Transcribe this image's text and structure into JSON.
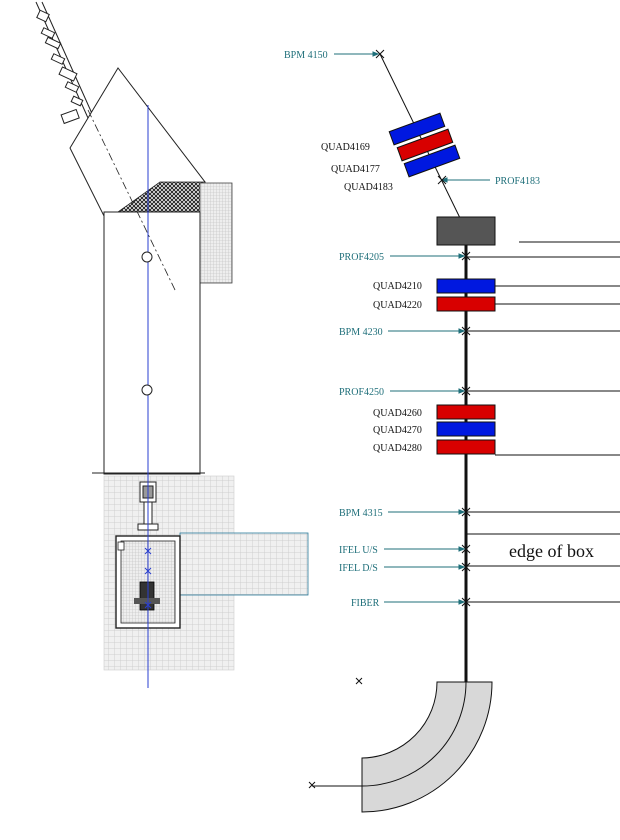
{
  "labels": {
    "bpm4150": "BPM  4150",
    "quad4169": "QUAD4169",
    "quad4177": "QUAD4177",
    "quad4183": "QUAD4183",
    "prof4183": "PROF4183",
    "prof4205": "PROF4205",
    "quad4210": "QUAD4210",
    "quad4220": "QUAD4220",
    "bpm4230": "BPM  4230",
    "prof4250": "PROF4250",
    "quad4260": "QUAD4260",
    "quad4270": "QUAD4270",
    "quad4280": "QUAD4280",
    "bpm4315": "BPM  4315",
    "ifelus": "IFEL U/S",
    "ifelds": "IFEL D/S",
    "fiber": "FIBER",
    "edge_of_box": "edge of box"
  },
  "colors": {
    "quad_blue": "#0018e0",
    "quad_red": "#d80000",
    "label_teal": "#1f6f7a",
    "box_gray": "#555555",
    "bend_fill": "#d8d8d8"
  }
}
